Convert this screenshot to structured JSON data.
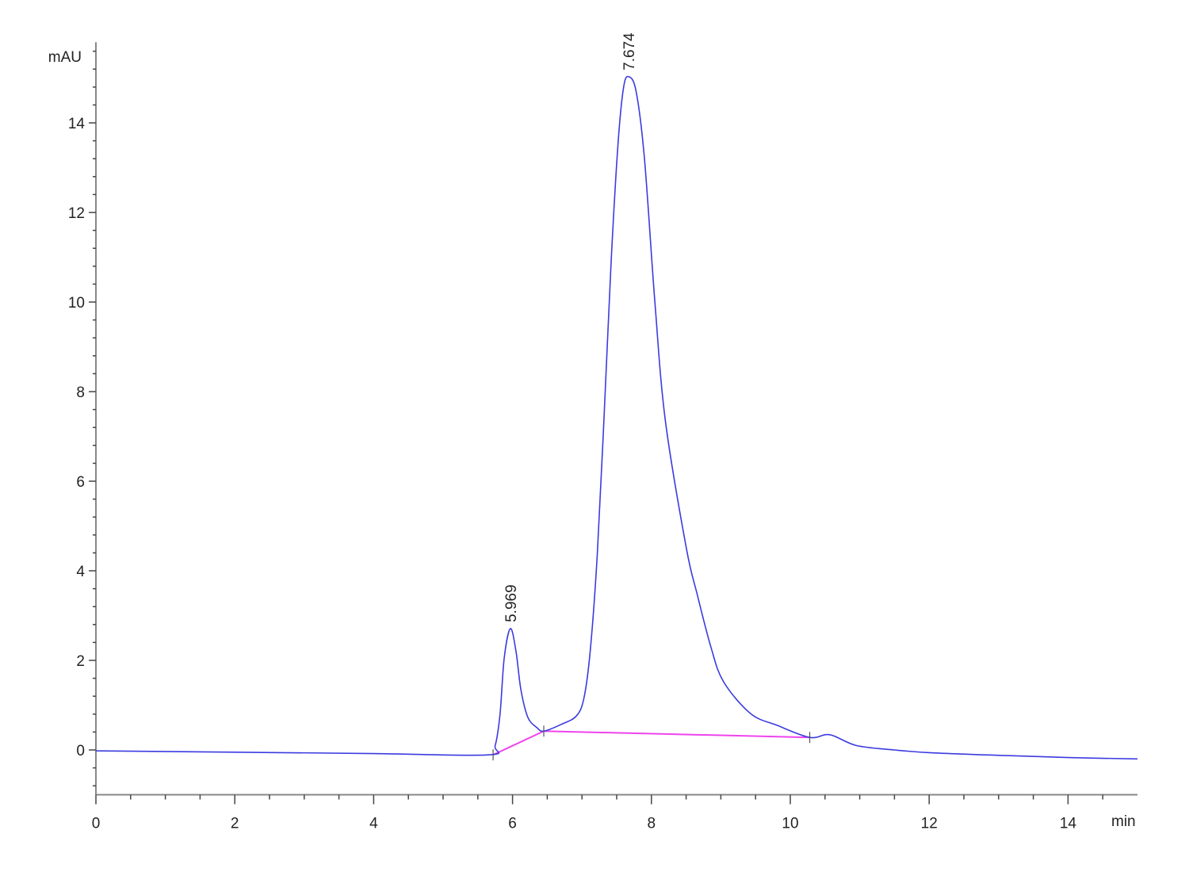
{
  "chart_data": {
    "type": "line",
    "title": "",
    "xlabel": "min",
    "ylabel": "mAU",
    "xlim": [
      0,
      15
    ],
    "ylim": [
      -1,
      15.8
    ],
    "grid": false,
    "x_ticks": [
      0,
      2,
      4,
      6,
      8,
      10,
      12,
      14
    ],
    "y_ticks": [
      0,
      2,
      4,
      6,
      8,
      10,
      12,
      14
    ],
    "colors": {
      "signal": "#3b3be0",
      "baseline": "#ee44ee",
      "axis": "#888888"
    },
    "series": [
      {
        "x": [
          0,
          2,
          4,
          5.65,
          5.75,
          5.82,
          5.88,
          5.969,
          6.05,
          6.12,
          6.22,
          6.35,
          6.45,
          6.7,
          6.92,
          7.03,
          7.12,
          7.22,
          7.32,
          7.42,
          7.52,
          7.6,
          7.674,
          7.78,
          7.9,
          8.05,
          8.2,
          8.5,
          8.66,
          8.86,
          9.04,
          9.43,
          9.81,
          10.28,
          10.57,
          10.95,
          11.5,
          12,
          13,
          14,
          15
        ],
        "y": [
          -0.02,
          -0.05,
          -0.08,
          -0.11,
          0.1,
          0.8,
          2.05,
          2.71,
          2.2,
          1.35,
          0.73,
          0.5,
          0.42,
          0.57,
          0.76,
          1.17,
          2.23,
          4.35,
          7.5,
          10.9,
          13.55,
          14.8,
          15.03,
          14.7,
          13.2,
          10.0,
          7.36,
          4.53,
          3.47,
          2.28,
          1.52,
          0.81,
          0.55,
          0.28,
          0.34,
          0.1,
          0.0,
          -0.06,
          -0.12,
          -0.17,
          -0.2
        ]
      }
    ],
    "integration_baseline": {
      "x": [
        5.72,
        6.45,
        10.28
      ],
      "y": [
        -0.11,
        0.42,
        0.28
      ]
    },
    "peak_labels": [
      {
        "label": "5.969",
        "x": 5.969,
        "y": 2.71
      },
      {
        "label": "7.674",
        "x": 7.674,
        "y": 15.03
      }
    ]
  }
}
